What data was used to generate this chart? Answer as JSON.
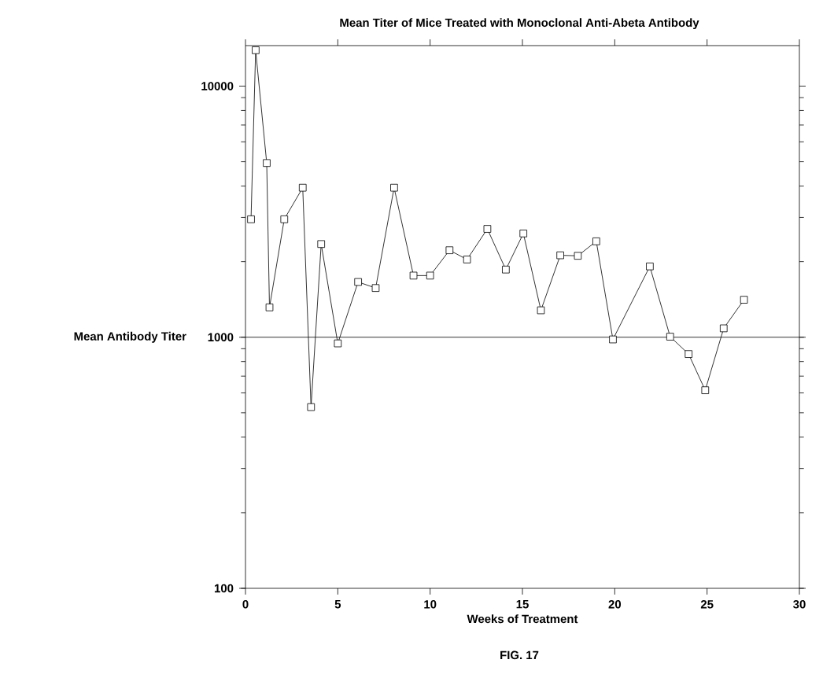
{
  "chart_data": {
    "type": "line",
    "title": "Mean Titer of Mice Treated with Monoclonal Anti-Abeta Antibody",
    "xlabel": "Weeks of Treatment",
    "ylabel": "Mean Antibody Titer",
    "annotations": [
      "FIG. 17"
    ],
    "x": [
      0.3,
      0.55,
      1.15,
      1.3,
      2.1,
      3.1,
      3.55,
      4.1,
      5.0,
      6.1,
      7.05,
      8.05,
      9.1,
      10.0,
      11.05,
      12.0,
      13.1,
      14.1,
      15.05,
      16.0,
      17.05,
      18.0,
      19.0,
      19.9,
      21.9,
      23.0,
      24.0,
      24.9,
      25.9,
      27.0
    ],
    "values": [
      2950,
      13900,
      4940,
      1315,
      2950,
      3940,
      527,
      2350,
      945,
      1660,
      1570,
      3940,
      1760,
      1760,
      2220,
      2040,
      2700,
      1860,
      2590,
      1280,
      2120,
      2110,
      2410,
      980,
      1915,
      1005,
      857,
      615,
      1085,
      1410
    ],
    "color": "#000000",
    "marker": "square",
    "line_style": "solid",
    "log": "y",
    "xlim": [
      0,
      30
    ],
    "ylim": [
      100,
      14500
    ],
    "xticks": [
      0,
      5,
      10,
      15,
      20,
      25,
      30
    ],
    "yticks": [
      100,
      1000,
      10000
    ],
    "ref_lines": [
      {
        "axis": "y",
        "value": 1000,
        "color": "#000000"
      }
    ]
  }
}
